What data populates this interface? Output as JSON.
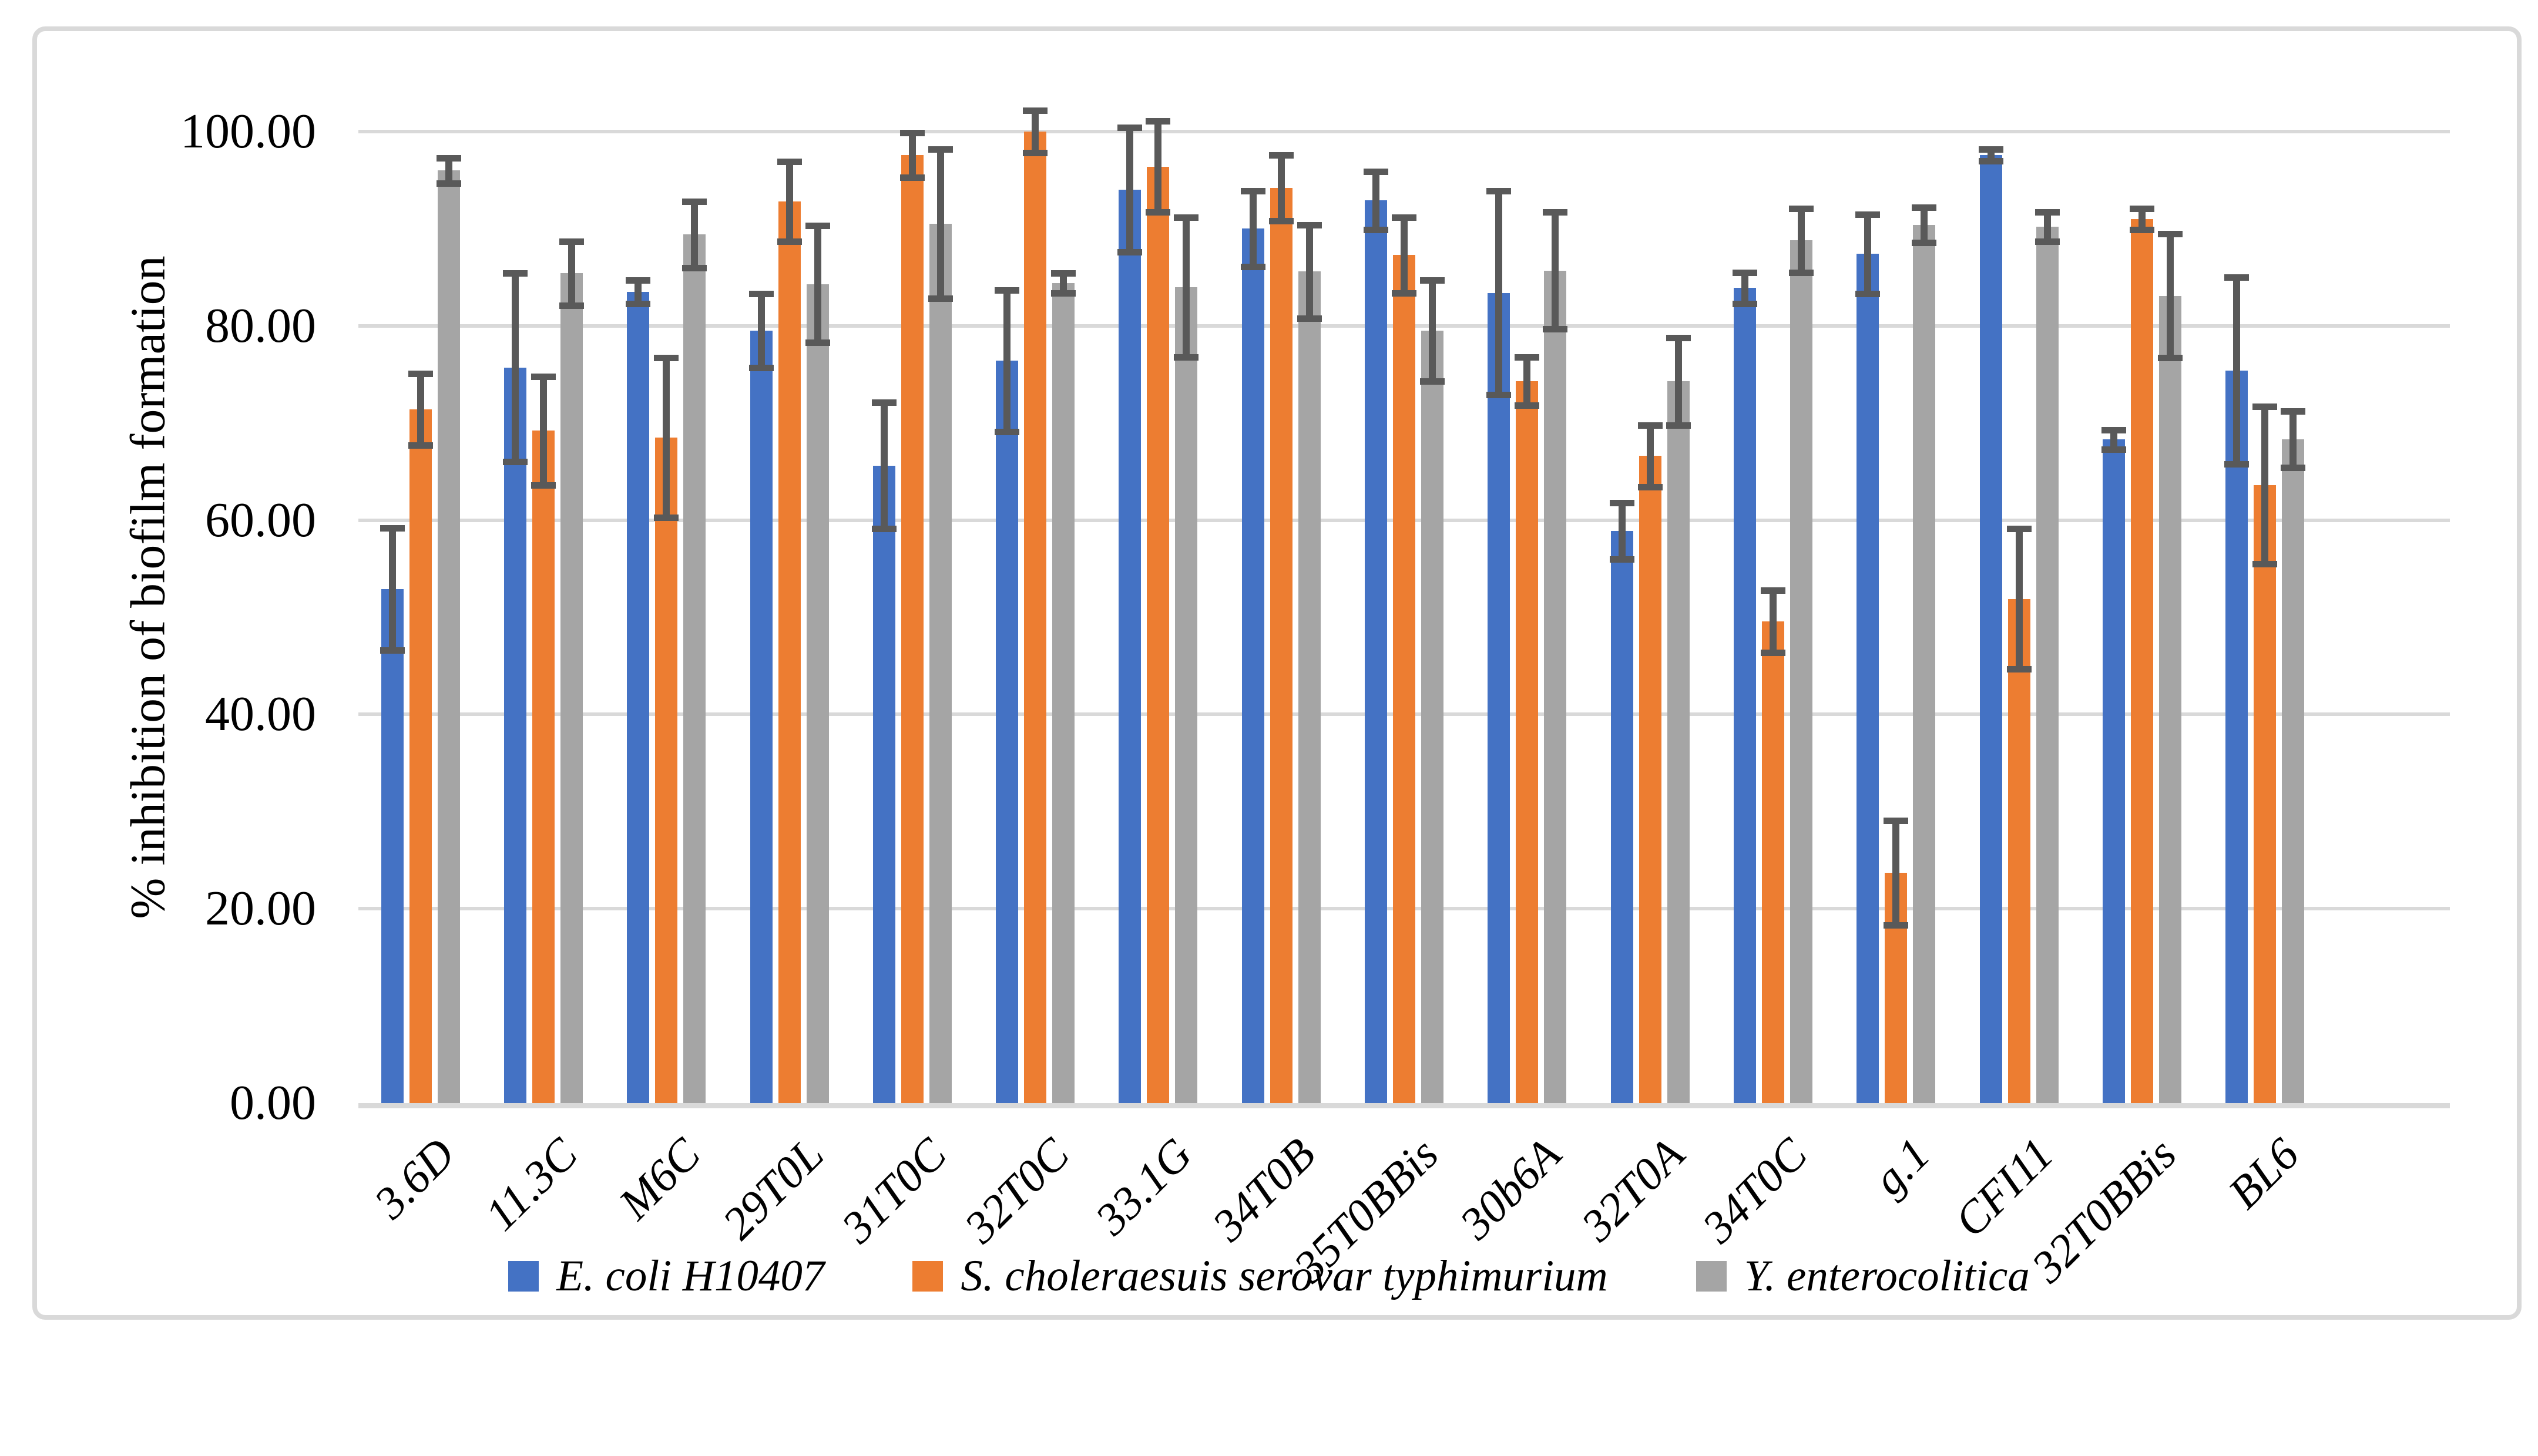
{
  "figure": {
    "background": "#FFFFFF",
    "border_color": "#D9D9D9"
  },
  "chart_data": {
    "type": "bar",
    "title": "",
    "xlabel": "",
    "ylabel": "% inhibition of biofilm formation",
    "ylim": [
      0,
      100
    ],
    "ytick_step": 20,
    "ytick_labels": [
      "0.00",
      "20.00",
      "40.00",
      "60.00",
      "80.00",
      "100.00"
    ],
    "grid": "horizontal",
    "gridline_color": "#D9D9D9",
    "axis_color": "#D9D9D9",
    "error_bar_color": "#595959",
    "legend_position": "bottom",
    "categories": [
      "3.6D",
      "11.3C",
      "M6C",
      "29T0L",
      "31T0C",
      "32T0C",
      "33.1G",
      "34T0B",
      "35T0BBis",
      "30b6A",
      "32T0A",
      "34T0C",
      "g.1",
      "CFI11",
      "32T0BBis",
      "BL6"
    ],
    "series": [
      {
        "name": "E. coli H10407",
        "color": "#4472C4",
        "values": [
          52.9,
          75.7,
          83.5,
          79.5,
          65.6,
          76.4,
          94.0,
          90.0,
          92.9,
          83.4,
          58.9,
          83.9,
          87.4,
          97.6,
          68.3,
          75.4
        ],
        "errors": [
          6.3,
          9.7,
          1.2,
          3.8,
          6.5,
          7.3,
          6.4,
          3.9,
          3.0,
          10.5,
          2.9,
          1.6,
          4.1,
          0.6,
          1.0,
          9.6
        ]
      },
      {
        "name": "S. choleraesuis serovar typhimurium",
        "color": "#ED7D31",
        "values": [
          71.4,
          69.2,
          68.5,
          92.8,
          97.6,
          100.0,
          96.4,
          94.2,
          87.3,
          74.3,
          66.6,
          49.6,
          23.7,
          51.9,
          91.0,
          63.6
        ],
        "errors": [
          3.7,
          5.6,
          8.2,
          4.1,
          2.3,
          2.2,
          4.7,
          3.4,
          3.9,
          2.5,
          3.2,
          3.2,
          5.4,
          7.2,
          1.1,
          8.1
        ]
      },
      {
        "name": "Y. enterocolitica",
        "color": "#A5A5A5",
        "values": [
          96.0,
          85.4,
          89.4,
          84.3,
          90.5,
          84.4,
          84.0,
          85.6,
          79.5,
          85.7,
          74.3,
          88.8,
          90.4,
          90.2,
          83.1,
          68.3
        ],
        "errors": [
          1.3,
          3.3,
          3.4,
          6.0,
          7.7,
          1.0,
          7.2,
          4.8,
          5.2,
          6.0,
          4.5,
          3.3,
          1.8,
          1.5,
          6.4,
          2.9
        ]
      }
    ]
  }
}
